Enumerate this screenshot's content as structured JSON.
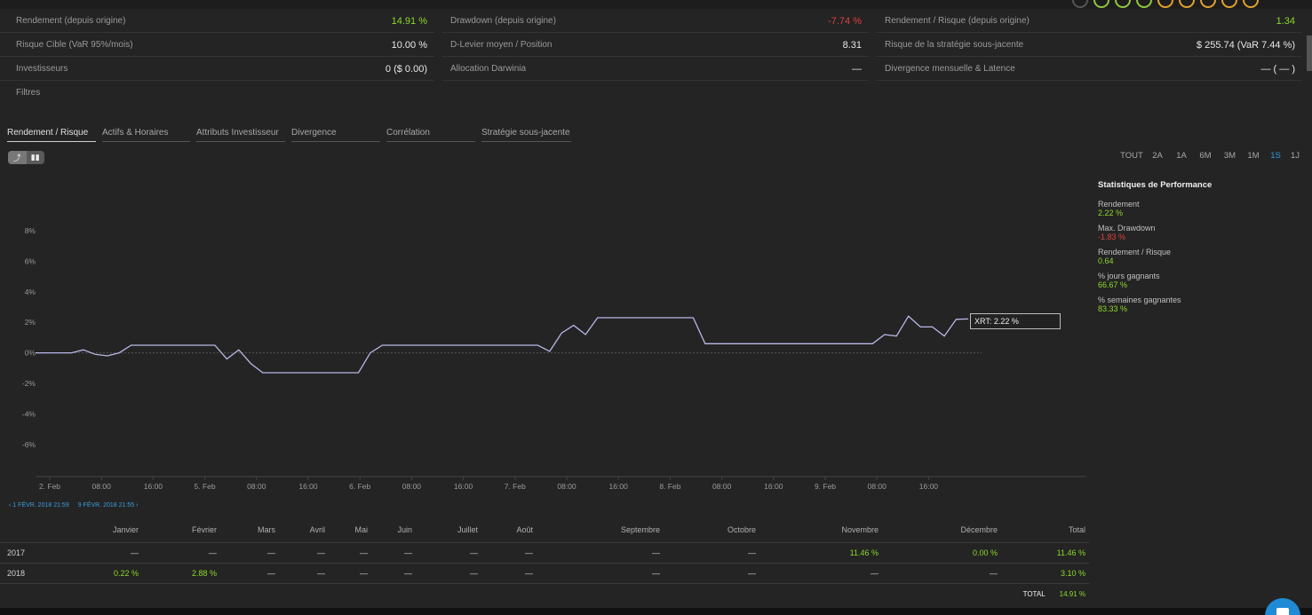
{
  "stats": [
    [
      {
        "label": "Rendement (depuis origine)",
        "value": "14.91 %",
        "color": "green"
      },
      {
        "label": "Drawdown (depuis origine)",
        "value": "-7.74 %",
        "color": "red"
      },
      {
        "label": "Rendement / Risque (depuis origine)",
        "value": "1.34",
        "color": "green"
      }
    ],
    [
      {
        "label": "Risque Cible (VaR 95%/mois)",
        "value": "10.00 %",
        "color": "white"
      },
      {
        "label": "D-Levier moyen / Position",
        "value": "8.31",
        "color": "white"
      },
      {
        "label": "Risque de la stratégie sous-jacente",
        "value": "$ 255.74 (VaR 7.44 %)",
        "color": "white"
      }
    ],
    [
      {
        "label": "Investisseurs",
        "value": "0 ($ 0.00)",
        "color": "white"
      },
      {
        "label": "Allocation Darwinia",
        "value": "—",
        "color": "white"
      },
      {
        "label": "Divergence mensuelle & Latence",
        "value": "— ( — )",
        "color": "white"
      }
    ]
  ],
  "filters_label": "Filtres",
  "tabs": [
    "Rendement / Risque",
    "Actifs & Horaires",
    "Attributs Investisseur",
    "Divergence",
    "Corrélation",
    "Stratégie sous-jacente"
  ],
  "periods": [
    "TOUT",
    "2A",
    "1A",
    "6M",
    "3M",
    "1M",
    "1S",
    "1J"
  ],
  "active_period": "1S",
  "chart_data": {
    "type": "line",
    "y_ticks": [
      "8%",
      "6%",
      "4%",
      "2%",
      "0%",
      "-2%",
      "-4%",
      "-6%"
    ],
    "ylim": [
      -8,
      9
    ],
    "x_ticks": [
      "2. Feb",
      "08:00",
      "16:00",
      "5. Feb",
      "08:00",
      "16:00",
      "6. Feb",
      "08:00",
      "16:00",
      "7. Feb",
      "08:00",
      "16:00",
      "8. Feb",
      "08:00",
      "16:00",
      "9. Feb",
      "08:00",
      "16:00"
    ],
    "series": [
      {
        "values": [
          0,
          0,
          0,
          0,
          0.2,
          -0.1,
          -0.2,
          0,
          0.5,
          0.5,
          0.5,
          0.5,
          0.5,
          0.5,
          0.5,
          0.5,
          -0.4,
          0.2,
          -0.7,
          -1.3,
          -1.3,
          -1.3,
          -1.3,
          -1.3,
          -1.3,
          -1.3,
          -1.3,
          -1.3,
          0,
          0.5,
          0.5,
          0.5,
          0.5,
          0.5,
          0.5,
          0.5,
          0.5,
          0.5,
          0.5,
          0.5,
          0.5,
          0.5,
          0.5,
          0.1,
          1.3,
          1.8,
          1.2,
          2.3,
          2.3,
          2.3,
          2.3,
          2.3,
          2.3,
          2.3,
          2.3,
          2.3,
          0.6,
          0.6,
          0.6,
          0.6,
          0.6,
          0.6,
          0.6,
          0.6,
          0.6,
          0.6,
          0.6,
          0.6,
          0.6,
          0.6,
          0.6,
          1.2,
          1.1,
          2.4,
          1.7,
          1.7,
          1.1,
          2.2,
          2.22
        ]
      }
    ],
    "tooltip": "XRT: 2.22 %",
    "line_color": "#b8b8e8"
  },
  "performance": {
    "title": "Statistiques de Performance",
    "items": [
      {
        "label": "Rendement",
        "value": "2.22 %",
        "color": "green"
      },
      {
        "label": "Max. Drawdown",
        "value": "-1.83 %",
        "color": "red"
      },
      {
        "label": "Rendement / Risque",
        "value": "0.64",
        "color": "green"
      },
      {
        "label": "% jours gagnants",
        "value": "66.67 %",
        "color": "green"
      },
      {
        "label": "% semaines gagnantes",
        "value": "83.33 %",
        "color": "green"
      }
    ]
  },
  "range": {
    "start": "1 FÉVR. 2018 21:59",
    "end": "9 FÉVR. 2018 21:55"
  },
  "monthly": {
    "headers": [
      "",
      "Janvier",
      "Février",
      "Mars",
      "Avril",
      "Mai",
      "Juin",
      "Juillet",
      "Août",
      "Septembre",
      "Octobre",
      "Novembre",
      "Décembre",
      "Total"
    ],
    "rows": [
      {
        "year": "2017",
        "values": [
          "—",
          "—",
          "—",
          "—",
          "—",
          "—",
          "—",
          "—",
          "—",
          "—",
          "11.46 %",
          "0.00 %",
          "11.46 %"
        ],
        "colors": [
          "",
          "",
          "",
          "",
          "",
          "",
          "",
          "",
          "",
          "",
          "green",
          "green",
          "green"
        ]
      },
      {
        "year": "2018",
        "values": [
          "0.22 %",
          "2.88 %",
          "—",
          "—",
          "—",
          "—",
          "—",
          "—",
          "—",
          "—",
          "—",
          "—",
          "3.10 %"
        ],
        "colors": [
          "green",
          "green",
          "",
          "",
          "",
          "",
          "",
          "",
          "",
          "",
          "",
          "",
          "green"
        ]
      }
    ],
    "total_label": "TOTAL",
    "total_value": "14.91 %"
  }
}
